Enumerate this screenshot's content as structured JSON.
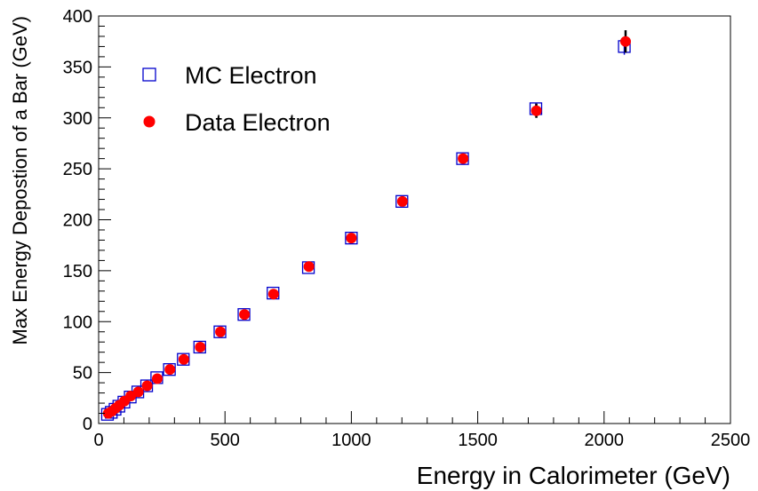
{
  "chart_data": {
    "type": "scatter",
    "title": "",
    "xlabel": "Energy in Calorimeter (GeV)",
    "ylabel": "Max Energy Depostion of a Bar (GeV)",
    "xlim": [
      0,
      2500
    ],
    "ylim": [
      0,
      400
    ],
    "x_ticks": [
      0,
      500,
      1000,
      1500,
      2000,
      2500
    ],
    "y_ticks": [
      0,
      50,
      100,
      150,
      200,
      250,
      300,
      350,
      400
    ],
    "grid": false,
    "legend": "top-left",
    "series": [
      {
        "name": "MC Electron",
        "marker": "open-square",
        "color": "#0000cc",
        "points": [
          {
            "x": 35,
            "y": 9
          },
          {
            "x": 50,
            "y": 11
          },
          {
            "x": 65,
            "y": 14
          },
          {
            "x": 80,
            "y": 17
          },
          {
            "x": 100,
            "y": 21
          },
          {
            "x": 125,
            "y": 26
          },
          {
            "x": 155,
            "y": 31
          },
          {
            "x": 190,
            "y": 37
          },
          {
            "x": 230,
            "y": 45
          },
          {
            "x": 280,
            "y": 53
          },
          {
            "x": 335,
            "y": 63
          },
          {
            "x": 400,
            "y": 75
          },
          {
            "x": 480,
            "y": 90
          },
          {
            "x": 575,
            "y": 107
          },
          {
            "x": 690,
            "y": 128
          },
          {
            "x": 830,
            "y": 153
          },
          {
            "x": 1000,
            "y": 182
          },
          {
            "x": 1200,
            "y": 218
          },
          {
            "x": 1440,
            "y": 260
          },
          {
            "x": 1730,
            "y": 309
          },
          {
            "x": 2080,
            "y": 370
          }
        ],
        "errors": [
          0,
          0,
          0,
          0,
          0,
          0,
          0,
          0,
          0,
          0,
          0,
          0,
          0,
          0,
          0,
          0,
          0,
          0,
          0,
          5,
          8
        ]
      },
      {
        "name": "Data Electron",
        "marker": "filled-circle",
        "color": "#ff0000",
        "points": [
          {
            "x": 38,
            "y": 10
          },
          {
            "x": 52,
            "y": 12
          },
          {
            "x": 67,
            "y": 15
          },
          {
            "x": 82,
            "y": 18
          },
          {
            "x": 102,
            "y": 22
          },
          {
            "x": 127,
            "y": 27
          },
          {
            "x": 157,
            "y": 31
          },
          {
            "x": 192,
            "y": 37
          },
          {
            "x": 232,
            "y": 44
          },
          {
            "x": 282,
            "y": 53
          },
          {
            "x": 337,
            "y": 63
          },
          {
            "x": 402,
            "y": 75
          },
          {
            "x": 482,
            "y": 90
          },
          {
            "x": 577,
            "y": 107
          },
          {
            "x": 692,
            "y": 127
          },
          {
            "x": 832,
            "y": 154
          },
          {
            "x": 1000,
            "y": 182
          },
          {
            "x": 1202,
            "y": 218
          },
          {
            "x": 1442,
            "y": 260
          },
          {
            "x": 1732,
            "y": 307
          },
          {
            "x": 2085,
            "y": 375
          }
        ],
        "errors": [
          0,
          0,
          0,
          0,
          0,
          0,
          0,
          0,
          0,
          0,
          0,
          0,
          0,
          0,
          0,
          0,
          0,
          0,
          0,
          7,
          11
        ]
      }
    ]
  }
}
